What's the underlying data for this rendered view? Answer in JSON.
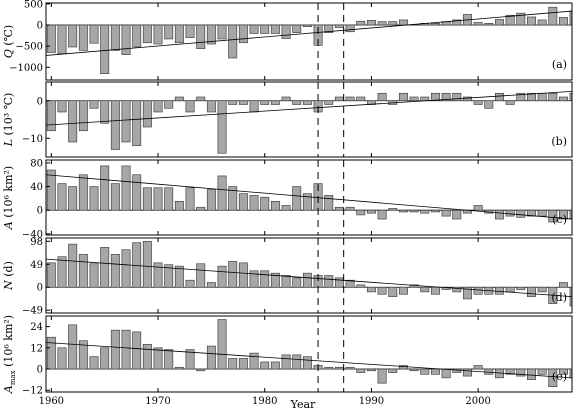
{
  "chart_data": {
    "type": "bar",
    "x_label": "Year",
    "x_range": [
      1959.5,
      2008.8
    ],
    "x_ticks": [
      1960,
      1970,
      1980,
      1990,
      2000
    ],
    "dashed_lines_x": [
      1985,
      1987.4
    ],
    "colors": {
      "bar": "#a6a6a6",
      "bar_edge": "#333333",
      "trend": "#000000",
      "frame": "#000000"
    },
    "panels": [
      {
        "id": "a",
        "label": "(a)",
        "ylabel": "Q (℃)",
        "ylim": [
          -1300,
          520
        ],
        "yticks": [
          "500",
          "0",
          "−500",
          "−1000"
        ],
        "ytick_values": [
          500,
          0,
          -500,
          -1000
        ],
        "trend": [
          -720,
          330
        ],
        "values": [
          -650,
          -680,
          -520,
          -600,
          -430,
          -1150,
          -600,
          -700,
          -520,
          -420,
          -450,
          -330,
          -420,
          -300,
          -560,
          -450,
          -330,
          -780,
          -420,
          -200,
          -200,
          -200,
          -320,
          -180,
          -40,
          -480,
          -180,
          -60,
          -160,
          90,
          110,
          80,
          80,
          120,
          10,
          40,
          40,
          80,
          120,
          250,
          60,
          40,
          130,
          230,
          280,
          190,
          120,
          420,
          180,
          330
        ]
      },
      {
        "id": "b",
        "label": "(b)",
        "ylabel": "L (10³ ℃)",
        "ylim": [
          -15,
          5
        ],
        "yticks": [
          "0",
          "−10"
        ],
        "ytick_values": [
          0,
          -10
        ],
        "trend": [
          -6.5,
          2.5
        ],
        "values": [
          -8,
          -3,
          -11,
          -8,
          -2,
          -6,
          -13,
          -11,
          -12,
          -7,
          -3,
          -2,
          1,
          -3,
          1,
          -3,
          -14,
          -1,
          -1,
          -3,
          -1,
          -1,
          1,
          -1,
          -1,
          -3,
          -1,
          1,
          1,
          1,
          -1,
          2,
          -1,
          2,
          1,
          1,
          2,
          2,
          2,
          1,
          -1,
          -2,
          2,
          -1,
          2,
          2,
          2,
          2,
          1,
          2
        ]
      },
      {
        "id": "c",
        "label": "(c)",
        "ylabel": "A (10⁶ km²)",
        "ylim": [
          -42,
          85
        ],
        "yticks": [
          "80",
          "40",
          "0",
          "−40"
        ],
        "ytick_values": [
          80,
          40,
          0,
          -40
        ],
        "trend": [
          60,
          -15
        ],
        "values": [
          68,
          45,
          40,
          60,
          40,
          75,
          45,
          75,
          60,
          38,
          38,
          38,
          15,
          38,
          5,
          35,
          58,
          40,
          28,
          25,
          22,
          15,
          8,
          40,
          28,
          45,
          25,
          5,
          5,
          -8,
          -5,
          -15,
          3,
          -3,
          -3,
          -5,
          -3,
          -10,
          -15,
          -5,
          8,
          -5,
          -15,
          -10,
          -12,
          -10,
          -10,
          -20,
          -15,
          -15
        ]
      },
      {
        "id": "d",
        "label": "(d)",
        "ylabel": "N (d)",
        "ylim": [
          -55,
          105
        ],
        "yticks": [
          "98",
          "49",
          "0",
          "−49"
        ],
        "ytick_values": [
          98,
          49,
          0,
          -49
        ],
        "trend": [
          60,
          -20
        ],
        "values": [
          52,
          65,
          92,
          70,
          50,
          85,
          70,
          80,
          95,
          98,
          52,
          48,
          45,
          15,
          50,
          10,
          45,
          55,
          52,
          35,
          35,
          30,
          25,
          20,
          30,
          25,
          25,
          20,
          15,
          5,
          -10,
          -15,
          -20,
          -15,
          5,
          -10,
          -15,
          -5,
          -10,
          -25,
          -15,
          -15,
          -15,
          -10,
          -5,
          -20,
          -10,
          -35,
          10,
          -40
        ]
      },
      {
        "id": "e",
        "label": "(e)",
        "ylabel": "A_max (10⁶ km²)",
        "ylim": [
          -13,
          30
        ],
        "yticks": [
          "24",
          "12",
          "0",
          "−12"
        ],
        "ytick_values": [
          24,
          12,
          0,
          -12
        ],
        "trend": [
          15,
          -5
        ],
        "values": [
          18,
          12,
          25,
          16,
          7,
          12,
          22,
          22,
          21,
          14,
          12,
          11,
          1,
          11,
          -1,
          13,
          28,
          6,
          6,
          9,
          4,
          4,
          8,
          8,
          7,
          2,
          1,
          1,
          1,
          -2,
          -1,
          -8,
          -2,
          2,
          -1,
          -3,
          -3,
          -5,
          -2,
          -4,
          2,
          -3,
          -5,
          -3,
          -4,
          -6,
          -3,
          -10,
          -3,
          -5
        ]
      }
    ]
  }
}
